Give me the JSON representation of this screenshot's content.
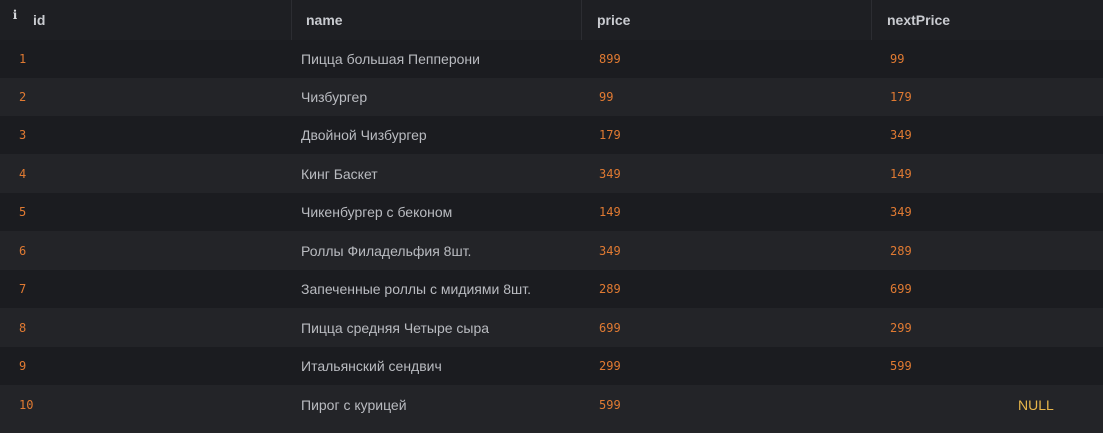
{
  "table": {
    "columns": [
      "id",
      "name",
      "price",
      "nextPrice"
    ],
    "rows": [
      {
        "id": "1",
        "name": "Пицца большая Пепперони",
        "price": "899",
        "nextPrice": "99"
      },
      {
        "id": "2",
        "name": "Чизбургер",
        "price": "99",
        "nextPrice": "179"
      },
      {
        "id": "3",
        "name": "Двойной Чизбургер",
        "price": "179",
        "nextPrice": "349"
      },
      {
        "id": "4",
        "name": "Кинг Баскет",
        "price": "349",
        "nextPrice": "149"
      },
      {
        "id": "5",
        "name": "Чикенбургер с беконом",
        "price": "149",
        "nextPrice": "349"
      },
      {
        "id": "6",
        "name": "Роллы Филадельфия 8шт.",
        "price": "349",
        "nextPrice": "289"
      },
      {
        "id": "7",
        "name": "Запеченные роллы с мидиями 8шт.",
        "price": "289",
        "nextPrice": "699"
      },
      {
        "id": "8",
        "name": "Пицца средняя Четыре сыра",
        "price": "699",
        "nextPrice": "299"
      },
      {
        "id": "9",
        "name": "Итальянский сендвич",
        "price": "299",
        "nextPrice": "599"
      },
      {
        "id": "10",
        "name": "Пирог с курицей",
        "price": "599",
        "nextPrice": "NULL"
      }
    ]
  },
  "icons": {
    "header_info": "info-icon"
  },
  "colors": {
    "background": "#232428",
    "row_alt": "#1b1c20",
    "header_bg": "#1e1f23",
    "numeric_text": "#e07a32",
    "null_text": "#e8b64a",
    "text": "#b9bbc0"
  }
}
